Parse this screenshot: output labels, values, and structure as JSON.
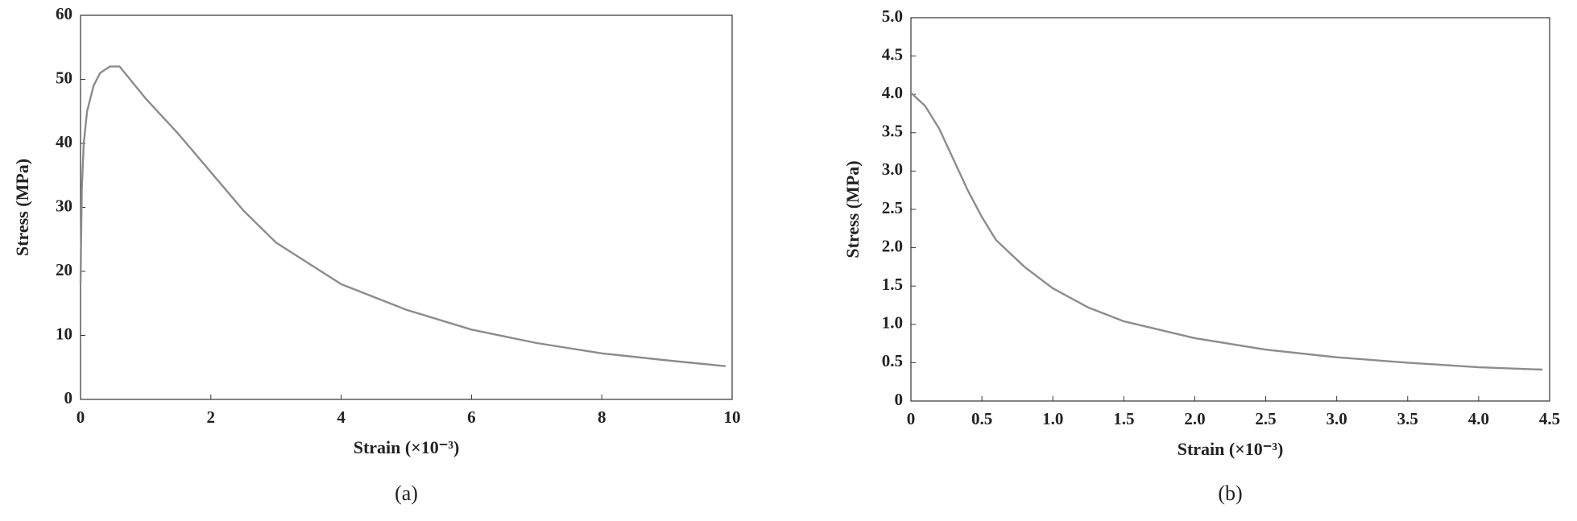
{
  "chart_data": [
    {
      "type": "line",
      "caption": "(a)",
      "xlabel": "Strain (×10⁻³)",
      "ylabel": "Stress (MPa)",
      "x": [
        0,
        0.02,
        0.05,
        0.1,
        0.2,
        0.3,
        0.45,
        0.6,
        1,
        1.5,
        2,
        2.5,
        3,
        4,
        5,
        6,
        7,
        8,
        9,
        9.9
      ],
      "series": [
        {
          "name": "Stress",
          "color": "#8c8c8c",
          "values": [
            18,
            33,
            40,
            45,
            49,
            51,
            52,
            52,
            47,
            41.5,
            35.5,
            29.5,
            24.5,
            18,
            14,
            10.9,
            8.8,
            7.2,
            6.1,
            5.2
          ]
        }
      ],
      "xlim": [
        0,
        10
      ],
      "xticks": [
        0,
        2,
        4,
        6,
        8,
        10
      ],
      "ylim": [
        0,
        60
      ],
      "yticks": [
        0,
        10,
        20,
        30,
        40,
        50,
        60
      ]
    },
    {
      "type": "line",
      "caption": "(b)",
      "xlabel": "Strain (×10⁻³)",
      "ylabel": "Stress (MPa)",
      "x": [
        0,
        0.1,
        0.2,
        0.3,
        0.4,
        0.5,
        0.6,
        0.8,
        1.0,
        1.25,
        1.5,
        2.0,
        2.5,
        3.0,
        3.5,
        4.0,
        4.45
      ],
      "series": [
        {
          "name": "Stress",
          "color": "#8c8c8c",
          "values": [
            4.02,
            3.85,
            3.55,
            3.15,
            2.75,
            2.4,
            2.1,
            1.75,
            1.47,
            1.22,
            1.04,
            0.82,
            0.67,
            0.57,
            0.5,
            0.44,
            0.41
          ]
        }
      ],
      "xlim": [
        0,
        4.5
      ],
      "xticks": [
        0,
        0.5,
        {
          "value": 1,
          "label": "1.0"
        },
        1.5,
        {
          "value": 2,
          "label": "2.0"
        },
        2.5,
        {
          "value": 3,
          "label": "3.0"
        },
        3.5,
        {
          "value": 4,
          "label": "4.0"
        },
        4.5
      ],
      "ylim": [
        0,
        5
      ],
      "yticks": [
        0,
        0.5,
        {
          "value": 1,
          "label": "1.0"
        },
        1.5,
        {
          "value": 2,
          "label": "2.0"
        },
        2.5,
        {
          "value": 3,
          "label": "3.0"
        },
        3.5,
        {
          "value": 4,
          "label": "4.0"
        },
        4.5,
        {
          "value": 5,
          "label": "5.0"
        }
      ]
    }
  ]
}
